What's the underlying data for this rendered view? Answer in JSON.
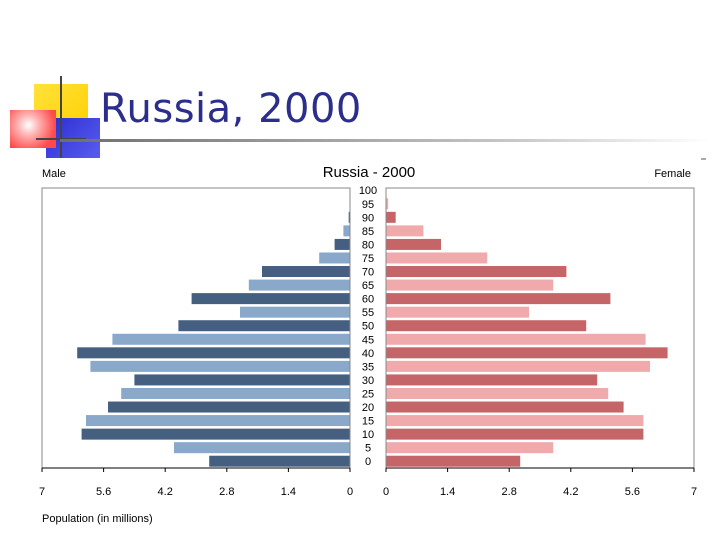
{
  "slide": {
    "title": "Russia, 2000"
  },
  "chart_data": {
    "type": "bar",
    "subtype": "population-pyramid",
    "title": "Russia - 2000",
    "left_label": "Male",
    "right_label": "Female",
    "xlabel": "Population (in millions)",
    "xlim": [
      0,
      7
    ],
    "x_ticks": [
      0,
      1.4,
      2.8,
      4.2,
      5.6,
      7
    ],
    "x_tick_labels_left": [
      "7",
      "5.6",
      "4.2",
      "2.8",
      "1.4",
      "0"
    ],
    "x_tick_labels_right": [
      "0",
      "1.4",
      "2.8",
      "4.2",
      "5.6",
      "7"
    ],
    "categories": [
      "0",
      "5",
      "10",
      "15",
      "20",
      "25",
      "30",
      "35",
      "40",
      "45",
      "50",
      "55",
      "60",
      "65",
      "70",
      "75",
      "80",
      "85",
      "90",
      "95",
      "100"
    ],
    "series": [
      {
        "name": "Male",
        "side": "left",
        "values": [
          3.2,
          4.0,
          6.1,
          6.0,
          5.5,
          5.2,
          4.9,
          5.9,
          6.2,
          5.4,
          3.9,
          2.5,
          3.6,
          2.3,
          2.0,
          0.7,
          0.35,
          0.15,
          0.03,
          0.01,
          0.0
        ]
      },
      {
        "name": "Female",
        "side": "right",
        "values": [
          3.05,
          3.8,
          5.85,
          5.85,
          5.4,
          5.05,
          4.8,
          6.0,
          6.4,
          5.9,
          4.55,
          3.25,
          5.1,
          3.8,
          4.1,
          2.3,
          1.25,
          0.85,
          0.22,
          0.05,
          0.0
        ]
      }
    ],
    "colors": {
      "male_dark": "#455f80",
      "male_light": "#8aa8c9",
      "female_dark": "#c56567",
      "female_light": "#f0aaab"
    },
    "grid": false,
    "legend": "none"
  }
}
